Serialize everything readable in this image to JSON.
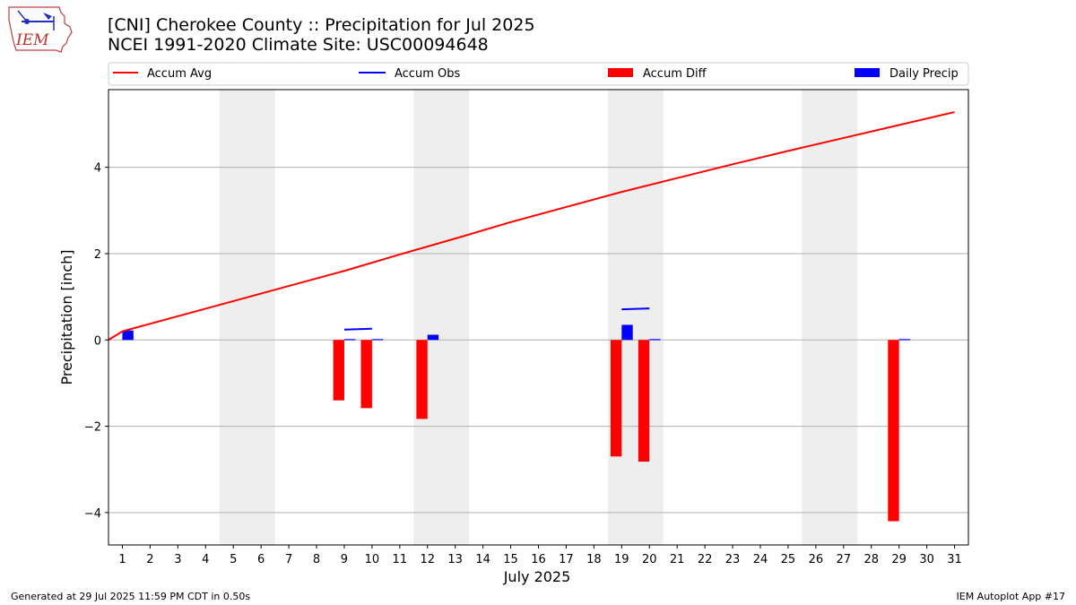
{
  "header": {
    "title_line1": "[CNI] Cherokee County :: Precipitation for Jul 2025",
    "title_line2": "NCEI 1991-2020 Climate Site: USC00094648",
    "logo_text": "IEM"
  },
  "footer": {
    "generated": "Generated at 29 Jul 2025 11:59 PM CDT in 0.50s",
    "app": "IEM Autoplot App #17"
  },
  "colors": {
    "avg": "#ff0000",
    "obs": "#0000ff",
    "diff": "#ff0000",
    "daily": "#0000ff",
    "weekend": "#eeeeee",
    "grid": "#b0b0b0"
  },
  "chart_data": {
    "type": "bar",
    "title": "[CNI] Cherokee County :: Precipitation for Jul 2025",
    "subtitle": "NCEI 1991-2020 Climate Site: USC00094648",
    "xlabel": "July 2025",
    "ylabel": "Precipitation [inch]",
    "xlim": [
      0.5,
      31.5
    ],
    "ylim": [
      -4.75,
      5.8
    ],
    "yticks": [
      -4,
      -2,
      0,
      2,
      4
    ],
    "xticks": [
      1,
      2,
      3,
      4,
      5,
      6,
      7,
      8,
      9,
      10,
      11,
      12,
      13,
      14,
      15,
      16,
      17,
      18,
      19,
      20,
      21,
      22,
      23,
      24,
      25,
      26,
      27,
      28,
      29,
      30,
      31
    ],
    "grid": "y",
    "legend_position": "top",
    "legend": [
      "Accum Avg",
      "Accum Obs",
      "Accum Diff",
      "Daily Precip"
    ],
    "weekend_shading": [
      [
        4.5,
        6.5
      ],
      [
        11.5,
        13.5
      ],
      [
        18.5,
        20.5
      ],
      [
        25.5,
        27.5
      ]
    ],
    "accum_avg": {
      "name": "Accum Avg",
      "x": [
        1,
        3,
        5,
        7,
        9,
        11,
        13,
        15,
        17,
        19,
        21,
        23,
        25,
        27,
        29,
        31
      ],
      "values": [
        0.2,
        0.55,
        0.9,
        1.25,
        1.6,
        1.98,
        2.35,
        2.73,
        3.08,
        3.43,
        3.75,
        4.07,
        4.38,
        4.68,
        4.98,
        5.28
      ]
    },
    "accum_obs": {
      "name": "Accum Obs",
      "segments": [
        {
          "x": [
            9,
            10
          ],
          "values": [
            0.24,
            0.26
          ]
        },
        {
          "x": [
            19,
            20
          ],
          "values": [
            0.71,
            0.73
          ]
        }
      ]
    },
    "accum_diff": {
      "name": "Accum Diff",
      "days": [
        9,
        10,
        12,
        19,
        20,
        29
      ],
      "values": [
        -1.4,
        -1.58,
        -1.83,
        -2.7,
        -2.82,
        -4.2
      ]
    },
    "daily_precip": {
      "name": "Daily Precip",
      "days": [
        1,
        9,
        10,
        12,
        19,
        20,
        29
      ],
      "values": [
        0.22,
        0.02,
        0.02,
        0.12,
        0.35,
        0.02,
        0.02
      ]
    }
  }
}
